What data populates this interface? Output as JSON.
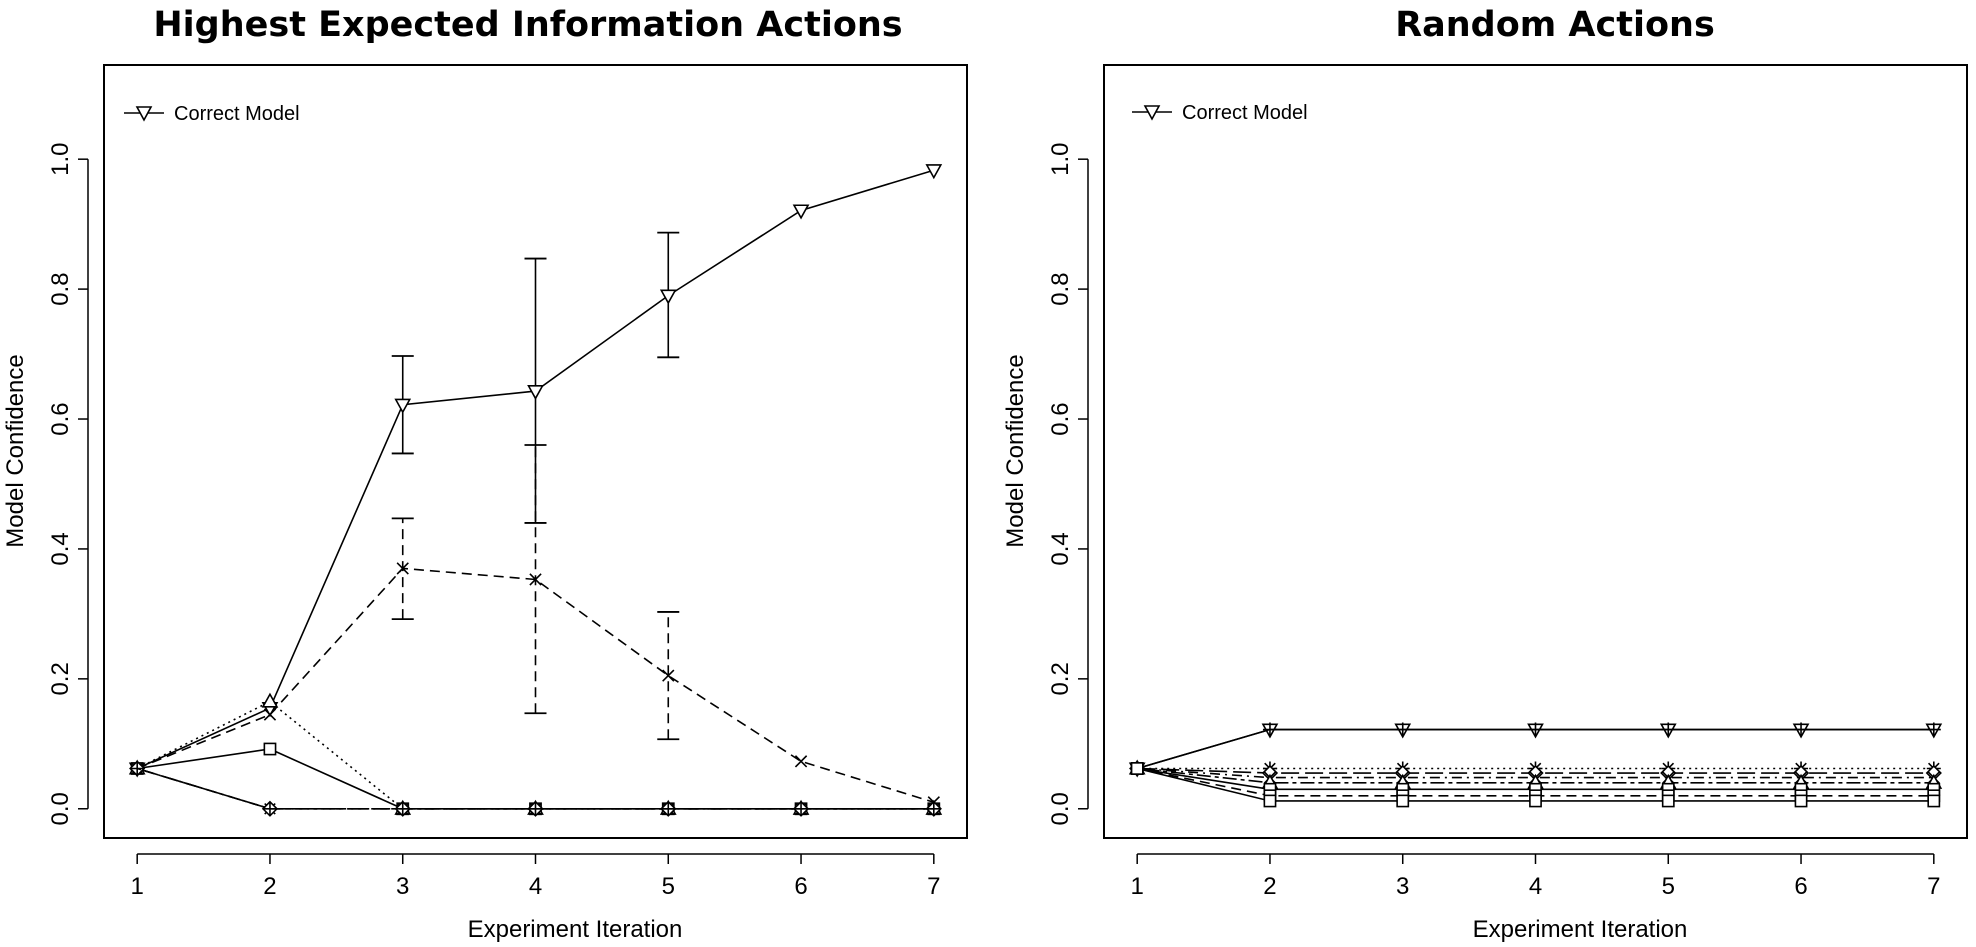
{
  "chart_data": [
    {
      "type": "line",
      "title": "Highest Expected Information Actions",
      "xlabel": "Experiment Iteration",
      "ylabel": "Model Confidence",
      "x": [
        1,
        2,
        3,
        4,
        5,
        6,
        7
      ],
      "xticks": [
        "1",
        "2",
        "3",
        "4",
        "5",
        "6",
        "7"
      ],
      "yticks": [
        "0.0",
        "0.2",
        "0.4",
        "0.6",
        "0.8",
        "1.0"
      ],
      "xlim": [
        0.75,
        7.25
      ],
      "ylim": [
        -0.045,
        1.145
      ],
      "grid": false,
      "legend": {
        "position": "top-left",
        "entries": [
          "Correct Model"
        ]
      },
      "series": [
        {
          "name": "Correct Model",
          "marker": "triangle-down",
          "dash": "solid",
          "values": [
            0.062,
            0.155,
            0.622,
            0.643,
            0.79,
            0.921,
            0.983
          ],
          "error_bars": [
            {
              "x": 3,
              "lo": 0.547,
              "hi": 0.697
            },
            {
              "x": 4,
              "lo": 0.44,
              "hi": 0.847
            },
            {
              "x": 5,
              "lo": 0.695,
              "hi": 0.887
            }
          ]
        },
        {
          "marker": "x",
          "dash": "dashed",
          "values": [
            0.062,
            0.145,
            0.37,
            0.353,
            0.205,
            0.073,
            0.01
          ],
          "error_bars": [
            {
              "x": 3,
              "lo": 0.292,
              "hi": 0.447
            },
            {
              "x": 4,
              "lo": 0.147,
              "hi": 0.56
            },
            {
              "x": 5,
              "lo": 0.107,
              "hi": 0.303
            }
          ]
        },
        {
          "marker": "square",
          "dash": "solid",
          "values": [
            0.062,
            0.092,
            0.0,
            0.0,
            0.0,
            0.0,
            0.0
          ]
        },
        {
          "marker": "triangle-up",
          "dash": "dotted",
          "values": [
            0.062,
            0.165,
            0.0,
            0.0,
            0.0,
            0.0,
            0.0
          ]
        },
        {
          "marker": "star",
          "dash": "longdash",
          "values": [
            0.062,
            0.0,
            0.0,
            0.0,
            0.0,
            0.0,
            0.0
          ]
        },
        {
          "marker": "diamond",
          "dash": "dotdash",
          "values": [
            0.062,
            0.0,
            0.0,
            0.0,
            0.0,
            0.0,
            0.0
          ]
        },
        {
          "marker": "plus",
          "dash": "twodash",
          "values": [
            0.062,
            0.0,
            0.0,
            0.0,
            0.0,
            0.0,
            0.0
          ]
        }
      ]
    },
    {
      "type": "line",
      "title": "Random Actions",
      "xlabel": "Experiment Iteration",
      "ylabel": "Model Confidence",
      "x": [
        1,
        2,
        3,
        4,
        5,
        6,
        7
      ],
      "xticks": [
        "1",
        "2",
        "3",
        "4",
        "5",
        "6",
        "7"
      ],
      "yticks": [
        "0.0",
        "0.2",
        "0.4",
        "0.6",
        "0.8",
        "1.0"
      ],
      "xlim": [
        0.75,
        7.25
      ],
      "ylim": [
        -0.045,
        1.145
      ],
      "grid": false,
      "legend": {
        "position": "top-left",
        "entries": [
          "Correct Model"
        ]
      },
      "series": [
        {
          "name": "Correct Model",
          "marker": "triangle-down",
          "dash": "solid",
          "values": [
            0.062,
            0.122,
            0.122,
            0.122,
            0.122,
            0.122,
            0.122
          ]
        },
        {
          "marker": "plus",
          "dash": "solid",
          "values": [
            0.062,
            0.122,
            0.122,
            0.122,
            0.122,
            0.122,
            0.122
          ]
        },
        {
          "marker": "star",
          "dash": "dotted",
          "values": [
            0.062,
            0.062,
            0.062,
            0.062,
            0.062,
            0.062,
            0.062
          ]
        },
        {
          "marker": "diamond",
          "dash": "longdash",
          "values": [
            0.062,
            0.055,
            0.055,
            0.055,
            0.055,
            0.055,
            0.055
          ]
        },
        {
          "marker": "x",
          "dash": "dotdash",
          "values": [
            0.062,
            0.048,
            0.048,
            0.048,
            0.048,
            0.048,
            0.048
          ]
        },
        {
          "marker": "triangle-up",
          "dash": "twodash",
          "values": [
            0.062,
            0.04,
            0.04,
            0.04,
            0.04,
            0.04,
            0.04
          ]
        },
        {
          "marker": "square",
          "dash": "solid",
          "values": [
            0.062,
            0.03,
            0.03,
            0.03,
            0.03,
            0.03,
            0.03
          ]
        },
        {
          "marker": "square",
          "dash": "dashed",
          "values": [
            0.062,
            0.02,
            0.02,
            0.02,
            0.02,
            0.02,
            0.02
          ]
        },
        {
          "marker": "square",
          "dash": "solid",
          "values": [
            0.062,
            0.012,
            0.012,
            0.012,
            0.012,
            0.012,
            0.012
          ]
        }
      ]
    }
  ]
}
